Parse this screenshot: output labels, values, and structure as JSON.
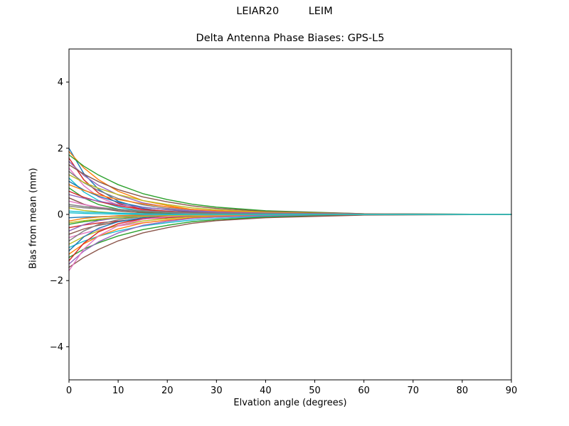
{
  "figure": {
    "suptitle": "LEIAR20         LEIM",
    "title": "Delta Antenna Phase Biases: GPS-L5"
  },
  "chart_data": {
    "type": "line",
    "suptitle": "LEIAR20         LEIM",
    "title": "Delta Antenna Phase Biases: GPS-L5",
    "xlabel": "Elvation angle (degrees)",
    "ylabel": "Bias from mean (mm)",
    "xlim": [
      0,
      90
    ],
    "ylim": [
      -5,
      5
    ],
    "xticks": [
      0,
      10,
      20,
      30,
      40,
      50,
      60,
      70,
      80,
      90
    ],
    "yticks": [
      -4,
      -2,
      0,
      2,
      4
    ],
    "grid": false,
    "legend": "none",
    "x": [
      0,
      3,
      6,
      10,
      15,
      20,
      25,
      30,
      40,
      60,
      90
    ],
    "series": [
      {
        "color": "#1f77b4",
        "y": [
          2.0,
          1.24,
          0.76,
          0.4,
          0.18,
          0.08,
          0.04,
          0.02,
          0,
          0,
          0
        ]
      },
      {
        "color": "#ff7f0e",
        "y": [
          1.9,
          1.41,
          1.05,
          0.7,
          0.42,
          0.27,
          0.15,
          0.1,
          0.04,
          0,
          0
        ]
      },
      {
        "color": "#2ca02c",
        "y": [
          1.8,
          1.46,
          1.19,
          0.9,
          0.63,
          0.45,
          0.31,
          0.22,
          0.11,
          0.02,
          0
        ]
      },
      {
        "color": "#d62728",
        "y": [
          1.7,
          1.05,
          0.65,
          0.34,
          0.15,
          0.07,
          0.03,
          0.02,
          0,
          0,
          0
        ]
      },
      {
        "color": "#9467bd",
        "y": [
          1.6,
          1.18,
          0.88,
          0.59,
          0.35,
          0.22,
          0.13,
          0.08,
          0.03,
          0,
          0
        ]
      },
      {
        "color": "#8c564b",
        "y": [
          1.5,
          1.22,
          0.99,
          0.75,
          0.53,
          0.38,
          0.26,
          0.18,
          0.09,
          0.02,
          0
        ]
      },
      {
        "color": "#e377c2",
        "y": [
          1.4,
          0.87,
          0.53,
          0.28,
          0.13,
          0.06,
          0.03,
          0.01,
          0,
          0,
          0
        ]
      },
      {
        "color": "#7f7f7f",
        "y": [
          1.3,
          0.96,
          0.72,
          0.48,
          0.29,
          0.18,
          0.1,
          0.07,
          0.03,
          0,
          0
        ]
      },
      {
        "color": "#bcbd22",
        "y": [
          1.2,
          0.97,
          0.79,
          0.6,
          0.42,
          0.3,
          0.2,
          0.14,
          0.07,
          0.01,
          0
        ]
      },
      {
        "color": "#17becf",
        "y": [
          1.1,
          0.68,
          0.42,
          0.22,
          0.1,
          0.04,
          0.02,
          0.01,
          0,
          0,
          0
        ]
      },
      {
        "color": "#1f77b4",
        "y": [
          1.0,
          0.74,
          0.55,
          0.37,
          0.22,
          0.14,
          0.08,
          0.05,
          0.02,
          0,
          0
        ]
      },
      {
        "color": "#ff7f0e",
        "y": [
          0.9,
          0.73,
          0.59,
          0.45,
          0.32,
          0.23,
          0.15,
          0.11,
          0.05,
          0.01,
          0
        ]
      },
      {
        "color": "#2ca02c",
        "y": [
          0.8,
          0.5,
          0.3,
          0.16,
          0.07,
          0.03,
          0.02,
          0.01,
          0,
          0,
          0
        ]
      },
      {
        "color": "#d62728",
        "y": [
          0.7,
          0.52,
          0.39,
          0.26,
          0.15,
          0.1,
          0.06,
          0.04,
          0.01,
          0,
          0
        ]
      },
      {
        "color": "#9467bd",
        "y": [
          0.6,
          0.49,
          0.4,
          0.3,
          0.21,
          0.15,
          0.1,
          0.07,
          0.04,
          0.01,
          0
        ]
      },
      {
        "color": "#8c564b",
        "y": [
          0.5,
          0.31,
          0.19,
          0.1,
          0.05,
          0.02,
          0.01,
          0.01,
          0,
          0,
          0
        ]
      },
      {
        "color": "#e377c2",
        "y": [
          0.4,
          0.3,
          0.22,
          0.15,
          0.09,
          0.06,
          0.03,
          0.02,
          0.01,
          0,
          0
        ]
      },
      {
        "color": "#7f7f7f",
        "y": [
          0.3,
          0.24,
          0.2,
          0.15,
          0.11,
          0.08,
          0.05,
          0.04,
          0.02,
          0,
          0
        ]
      },
      {
        "color": "#bcbd22",
        "y": [
          0.2,
          0.12,
          0.08,
          0.04,
          0.02,
          0.01,
          0,
          0,
          0,
          0,
          0
        ]
      },
      {
        "color": "#17becf",
        "y": [
          0.1,
          0.07,
          0.06,
          0.04,
          0.02,
          0.01,
          0.01,
          0,
          0,
          0,
          0
        ]
      },
      {
        "color": "#1f77b4",
        "y": [
          -0.1,
          -0.08,
          -0.07,
          -0.05,
          -0.04,
          -0.03,
          -0.02,
          -0.01,
          -0.01,
          0,
          0
        ]
      },
      {
        "color": "#ff7f0e",
        "y": [
          -0.2,
          -0.12,
          -0.08,
          -0.04,
          -0.02,
          -0.01,
          0,
          0,
          0,
          0,
          0
        ]
      },
      {
        "color": "#2ca02c",
        "y": [
          -0.3,
          -0.22,
          -0.17,
          -0.11,
          -0.07,
          -0.04,
          -0.02,
          -0.02,
          -0.01,
          0,
          0
        ]
      },
      {
        "color": "#d62728",
        "y": [
          -0.4,
          -0.32,
          -0.26,
          -0.2,
          -0.14,
          -0.1,
          -0.07,
          -0.05,
          -0.02,
          0,
          0
        ]
      },
      {
        "color": "#9467bd",
        "y": [
          -0.5,
          -0.31,
          -0.19,
          -0.1,
          -0.05,
          -0.02,
          -0.01,
          -0.01,
          0,
          0,
          0
        ]
      },
      {
        "color": "#8c564b",
        "y": [
          -0.6,
          -0.44,
          -0.33,
          -0.22,
          -0.13,
          -0.08,
          -0.05,
          -0.03,
          -0.01,
          0,
          0
        ]
      },
      {
        "color": "#e377c2",
        "y": [
          -0.7,
          -0.57,
          -0.46,
          -0.35,
          -0.25,
          -0.18,
          -0.12,
          -0.08,
          -0.04,
          -0.01,
          0
        ]
      },
      {
        "color": "#7f7f7f",
        "y": [
          -0.8,
          -0.5,
          -0.3,
          -0.16,
          -0.07,
          -0.03,
          -0.02,
          -0.01,
          0,
          0,
          0
        ]
      },
      {
        "color": "#bcbd22",
        "y": [
          -0.9,
          -0.67,
          -0.5,
          -0.33,
          -0.2,
          -0.13,
          -0.07,
          -0.05,
          -0.02,
          0,
          0
        ]
      },
      {
        "color": "#17becf",
        "y": [
          -1.0,
          -0.81,
          -0.66,
          -0.5,
          -0.35,
          -0.25,
          -0.17,
          -0.12,
          -0.06,
          -0.01,
          0
        ]
      },
      {
        "color": "#1f77b4",
        "y": [
          -1.1,
          -0.68,
          -0.42,
          -0.22,
          -0.1,
          -0.04,
          -0.02,
          -0.01,
          0,
          0,
          0
        ]
      },
      {
        "color": "#ff7f0e",
        "y": [
          -1.2,
          -0.89,
          -0.66,
          -0.44,
          -0.26,
          -0.17,
          -0.1,
          -0.06,
          -0.02,
          0,
          0
        ]
      },
      {
        "color": "#2ca02c",
        "y": [
          -1.3,
          -1.05,
          -0.86,
          -0.65,
          -0.46,
          -0.33,
          -0.22,
          -0.16,
          -0.08,
          -0.01,
          0
        ]
      },
      {
        "color": "#d62728",
        "y": [
          -1.4,
          -0.87,
          -0.53,
          -0.28,
          -0.13,
          -0.06,
          -0.03,
          -0.01,
          0,
          0,
          0
        ]
      },
      {
        "color": "#9467bd",
        "y": [
          -1.5,
          -1.11,
          -0.83,
          -0.56,
          -0.33,
          -0.21,
          -0.12,
          -0.08,
          -0.03,
          0,
          0
        ]
      },
      {
        "color": "#8c564b",
        "y": [
          -1.6,
          -1.3,
          -1.06,
          -0.8,
          -0.56,
          -0.4,
          -0.27,
          -0.19,
          -0.1,
          -0.02,
          0
        ]
      },
      {
        "color": "#e377c2",
        "y": [
          -1.7,
          -1.05,
          -0.65,
          -0.34,
          -0.15,
          -0.07,
          -0.03,
          -0.02,
          0,
          0,
          0
        ]
      },
      {
        "color": "#7f7f7f",
        "y": [
          0.25,
          0.2,
          0.17,
          0.13,
          0.09,
          0.06,
          0.04,
          0.03,
          0.02,
          0,
          0
        ]
      },
      {
        "color": "#bcbd22",
        "y": [
          -0.25,
          -0.19,
          -0.14,
          -0.09,
          -0.06,
          -0.04,
          -0.02,
          -0.01,
          -0.01,
          0,
          0
        ]
      },
      {
        "color": "#17becf",
        "y": [
          0.05,
          0.03,
          0.02,
          0.01,
          0,
          0,
          0,
          0,
          0,
          0,
          0
        ]
      }
    ]
  }
}
